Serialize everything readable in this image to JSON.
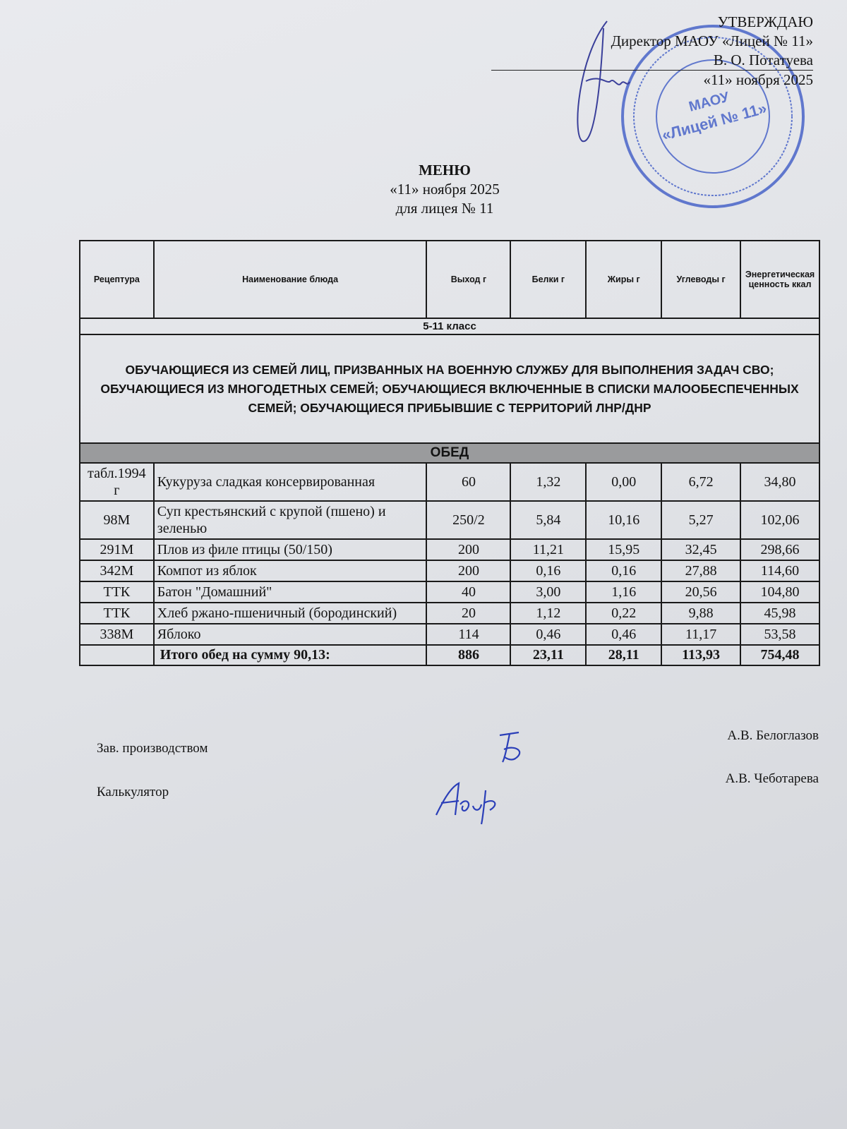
{
  "approval": {
    "heading": "УТВЕРЖДАЮ",
    "position": "Директор МАОУ «Лицей № 11»",
    "name": "В. О. Потатуева",
    "date": "«11» ноября 2025",
    "stamp_text": "МАОУ «Лицей № 11»",
    "stamp_color": "#2f4fc0"
  },
  "header": {
    "title": "МЕНЮ",
    "date": "«11» ноября 2025",
    "subtitle": "для лицея № 11"
  },
  "table": {
    "columns": [
      "Рецептура",
      "Наименование блюда",
      "Выход г",
      "Белки г",
      "Жиры г",
      "Углеводы г",
      "Энергетическая ценность ккал"
    ],
    "class_label": "5-11 класс",
    "group_label": "ОБУЧАЮЩИЕСЯ ИЗ СЕМЕЙ ЛИЦ, ПРИЗВАННЫХ НА ВОЕННУЮ СЛУЖБУ ДЛЯ ВЫПОЛНЕНИЯ ЗАДАЧ СВО; ОБУЧАЮЩИЕСЯ ИЗ МНОГОДЕТНЫХ СЕМЕЙ; ОБУЧАЮЩИЕСЯ ВКЛЮЧЕННЫЕ В СПИСКИ  МАЛООБЕСПЕЧЕННЫХ СЕМЕЙ; ОБУЧАЮЩИЕСЯ ПРИБЫВШИЕ С ТЕРРИТОРИЙ ЛНР/ДНР",
    "meal_label": "ОБЕД",
    "rows": [
      {
        "recipe": "табл.1994 г",
        "name": "Кукуруза сладкая консервированная",
        "yield": "60",
        "protein": "1,32",
        "fat": "0,00",
        "carbs": "6,72",
        "kcal": "34,80"
      },
      {
        "recipe": "98М",
        "name": "Суп крестьянский с крупой (пшено) и зеленью",
        "yield": "250/2",
        "protein": "5,84",
        "fat": "10,16",
        "carbs": "5,27",
        "kcal": "102,06"
      },
      {
        "recipe": "291М",
        "name": "Плов из филе птицы (50/150)",
        "yield": "200",
        "protein": "11,21",
        "fat": "15,95",
        "carbs": "32,45",
        "kcal": "298,66"
      },
      {
        "recipe": "342М",
        "name": "Компот из яблок",
        "yield": "200",
        "protein": "0,16",
        "fat": "0,16",
        "carbs": "27,88",
        "kcal": "114,60"
      },
      {
        "recipe": "ТТК",
        "name": "Батон \"Домашний\"",
        "yield": "40",
        "protein": "3,00",
        "fat": "1,16",
        "carbs": "20,56",
        "kcal": "104,80"
      },
      {
        "recipe": "ТТК",
        "name": "Хлеб ржано-пшеничный (бородинский)",
        "yield": "20",
        "protein": "1,12",
        "fat": "0,22",
        "carbs": "9,88",
        "kcal": "45,98"
      },
      {
        "recipe": "338М",
        "name": "Яблоко",
        "yield": "114",
        "protein": "0,46",
        "fat": "0,46",
        "carbs": "11,17",
        "kcal": "53,58"
      }
    ],
    "total": {
      "label": "Итого обед на сумму 90,13:",
      "yield": "886",
      "protein": "23,11",
      "fat": "28,11",
      "carbs": "113,93",
      "kcal": "754,48"
    }
  },
  "signatures": {
    "production_role": "Зав. производством",
    "production_name": "А.В. Белоглазов",
    "calculator_role": "Калькулятор",
    "calculator_name": "А.В. Чеботарева",
    "ink_color": "#2b3fb8"
  }
}
